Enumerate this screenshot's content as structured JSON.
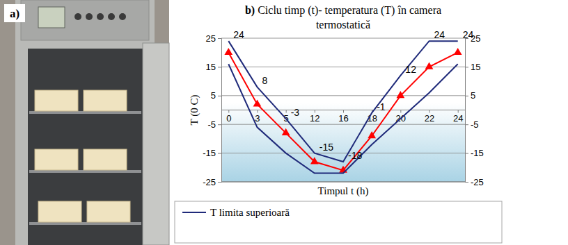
{
  "photo": {
    "label": "a)"
  },
  "chart_data": {
    "type": "line",
    "label": "b)",
    "title": "Ciclu timp (t)- temperatura (T) în camera termostatică",
    "x_label": "Timpul t (h)",
    "y_label": "T (0 C)",
    "categories": [
      "0",
      "3",
      "5",
      "12",
      "16",
      "18",
      "20",
      "22",
      "24"
    ],
    "series": [
      {
        "name": "T limita superioară",
        "color": "#1f2a7a",
        "values": [
          24,
          8,
          -3,
          -15,
          -18,
          -1,
          12,
          24,
          24
        ],
        "data_labels": true
      },
      {
        "color": "#ff0000",
        "marker": "triangle",
        "values": [
          20,
          2,
          -8,
          -18,
          -21,
          -9,
          5,
          15,
          20
        ]
      },
      {
        "color": "#1f2a7a",
        "values": [
          16,
          -6,
          -15,
          -22,
          -22,
          -12,
          -3,
          6,
          16
        ]
      }
    ],
    "ylim": [
      -25,
      25
    ],
    "yticks": [
      -25,
      -15,
      -5,
      5,
      15,
      25
    ],
    "y2lim": [
      -25,
      25
    ],
    "y2ticks": [
      -25,
      -15,
      -5,
      5,
      15,
      25
    ],
    "grid": true,
    "legend": "bottom"
  }
}
